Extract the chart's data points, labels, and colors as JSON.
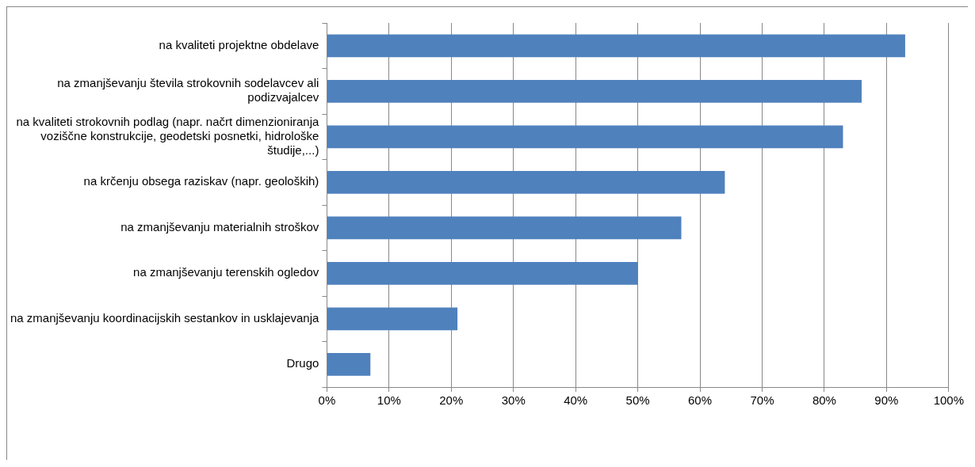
{
  "chart_data": {
    "type": "bar",
    "orientation": "horizontal",
    "categories": [
      "na kvaliteti projektne obdelave",
      "na zmanjševanju števila strokovnih sodelavcev ali podizvajalcev",
      "na kvaliteti strokovnih podlag (napr. načrt dimenzioniranja voziščne konstrukcije, geodetski posnetki, hidrološke študije,...)",
      "na krčenju obsega raziskav (napr. geoloških)",
      "na zmanjševanju materialnih stroškov",
      "na zmanjševanju terenskih ogledov",
      "na zmanjševanju koordinacijskih sestankov in usklajevanja",
      "Drugo"
    ],
    "values": [
      93,
      86,
      83,
      64,
      57,
      50,
      21,
      7
    ],
    "color": "#4f81bd",
    "xlim": [
      0,
      100
    ],
    "xticks": [
      {
        "value": 0,
        "label": "0%"
      },
      {
        "value": 10,
        "label": "10%"
      },
      {
        "value": 20,
        "label": "20%"
      },
      {
        "value": 30,
        "label": "30%"
      },
      {
        "value": 40,
        "label": "40%"
      },
      {
        "value": 50,
        "label": "50%"
      },
      {
        "value": 60,
        "label": "60%"
      },
      {
        "value": 70,
        "label": "70%"
      },
      {
        "value": 80,
        "label": "80%"
      },
      {
        "value": 90,
        "label": "90%"
      },
      {
        "value": 100,
        "label": "100%"
      }
    ],
    "grid": "x",
    "legend": false
  }
}
